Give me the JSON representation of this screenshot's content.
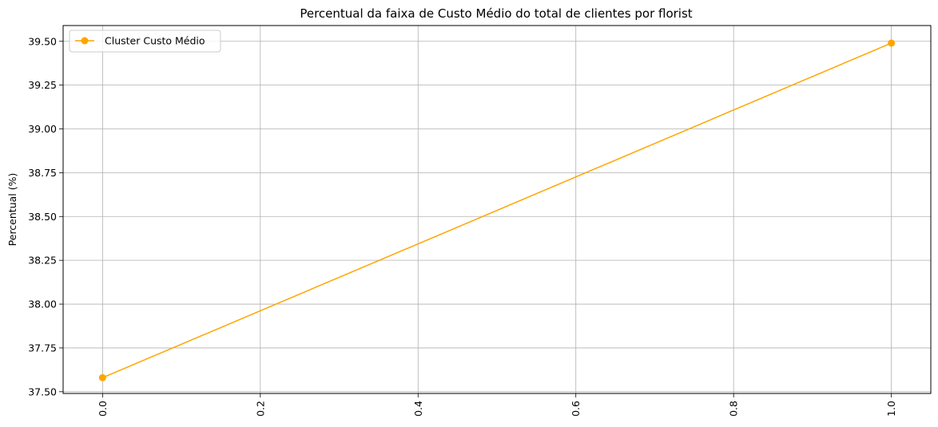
{
  "chart_data": {
    "type": "line",
    "title": "Percentual da faixa de Custo Médio do total de clientes por florist",
    "xlabel": "",
    "ylabel": "Percentual (%)",
    "xlim": [
      -0.05,
      1.05
    ],
    "ylim": [
      37.49,
      39.59
    ],
    "x_ticks": [
      0.0,
      0.2,
      0.4,
      0.6,
      0.8,
      1.0
    ],
    "x_tick_labels": [
      "0.0",
      "0.2",
      "0.4",
      "0.6",
      "0.8",
      "1.0"
    ],
    "x_tick_rotation": "vertical",
    "y_ticks": [
      37.5,
      37.75,
      38.0,
      38.25,
      38.5,
      38.75,
      39.0,
      39.25,
      39.5
    ],
    "y_tick_labels": [
      "37.50",
      "37.75",
      "38.00",
      "38.25",
      "38.50",
      "38.75",
      "39.00",
      "39.25",
      "39.50"
    ],
    "grid": true,
    "legend_position": "top-left",
    "series": [
      {
        "name": "Cluster Custo Médio",
        "color": "#ffa500",
        "marker": "circle",
        "x": [
          0.0,
          1.0
        ],
        "values": [
          37.58,
          39.49
        ]
      }
    ]
  }
}
